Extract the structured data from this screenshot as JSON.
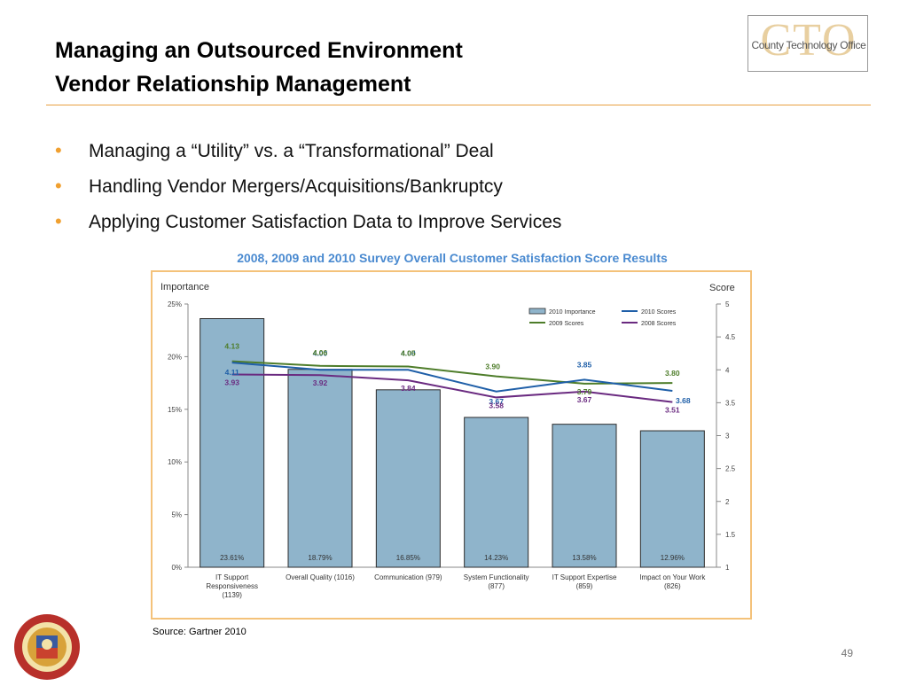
{
  "slide": {
    "title_line1": "Managing an Outsourced Environment",
    "title_line2": "Vendor Relationship Management",
    "logo": {
      "letters": "CTO",
      "text": "County Technology Office"
    },
    "bullets": [
      "Managing a “Utility” vs. a “Transformational” Deal",
      "Handling Vendor Mergers/Acquisitions/Bankruptcy",
      "Applying Customer Satisfaction Data to Improve Services"
    ],
    "source": "Source: Gartner 2010",
    "page_number": "49",
    "accent_color": "#f0a030",
    "chart_title_color": "#4a8ad0"
  },
  "chart_data": {
    "type": "bar",
    "title": "2008, 2009 and 2010 Survey Overall Customer Satisfaction Score Results",
    "ylabel_left": "Importance",
    "ylabel_right": "Score",
    "ylim_left": [
      0,
      25
    ],
    "yticks_left": [
      "0%",
      "5%",
      "10%",
      "15%",
      "20%",
      "25%"
    ],
    "ylim_right": [
      1,
      5
    ],
    "yticks_right": [
      "1",
      "1.5",
      "2",
      "2.5",
      "3",
      "3.5",
      "4",
      "4.5",
      "5"
    ],
    "grid": false,
    "legend_placement": "top-right",
    "categories": [
      [
        "IT Support",
        "Responsiveness",
        "(1139)"
      ],
      [
        "Overall Quality (1016)"
      ],
      [
        "Communication (979)"
      ],
      [
        "System Functionality",
        "(877)"
      ],
      [
        "IT Support Expertise",
        "(859)"
      ],
      [
        "Impact on Your Work",
        "(826)"
      ]
    ],
    "bars": {
      "name": "2010 Importance",
      "color": "#8fb4cb",
      "values": [
        23.61,
        18.79,
        16.85,
        14.23,
        13.58,
        12.96
      ],
      "labels": [
        "23.61%",
        "18.79%",
        "16.85%",
        "14.23%",
        "13.58%",
        "12.96%"
      ]
    },
    "series": [
      {
        "name": "2010 Scores",
        "color": "#1f5fa8",
        "values": [
          4.11,
          4.0,
          4.0,
          3.67,
          3.85,
          3.68
        ],
        "labels": [
          "4.11",
          "4.00",
          "4.00",
          "3.67",
          "3.85",
          "3.68"
        ]
      },
      {
        "name": "2009 Scores",
        "color": "#4e7d2a",
        "values": [
          4.13,
          4.06,
          4.05,
          3.9,
          3.79,
          3.8
        ],
        "labels": [
          "4.13",
          "4.06",
          "4.05",
          "3.90",
          "3.79",
          "3.80"
        ]
      },
      {
        "name": "2008 Scores",
        "color": "#6a2a80",
        "values": [
          3.93,
          3.92,
          3.84,
          3.58,
          3.67,
          3.51
        ],
        "labels": [
          "3.93",
          "3.92",
          "3.84",
          "3.58",
          "3.67",
          "3.51"
        ]
      }
    ]
  }
}
